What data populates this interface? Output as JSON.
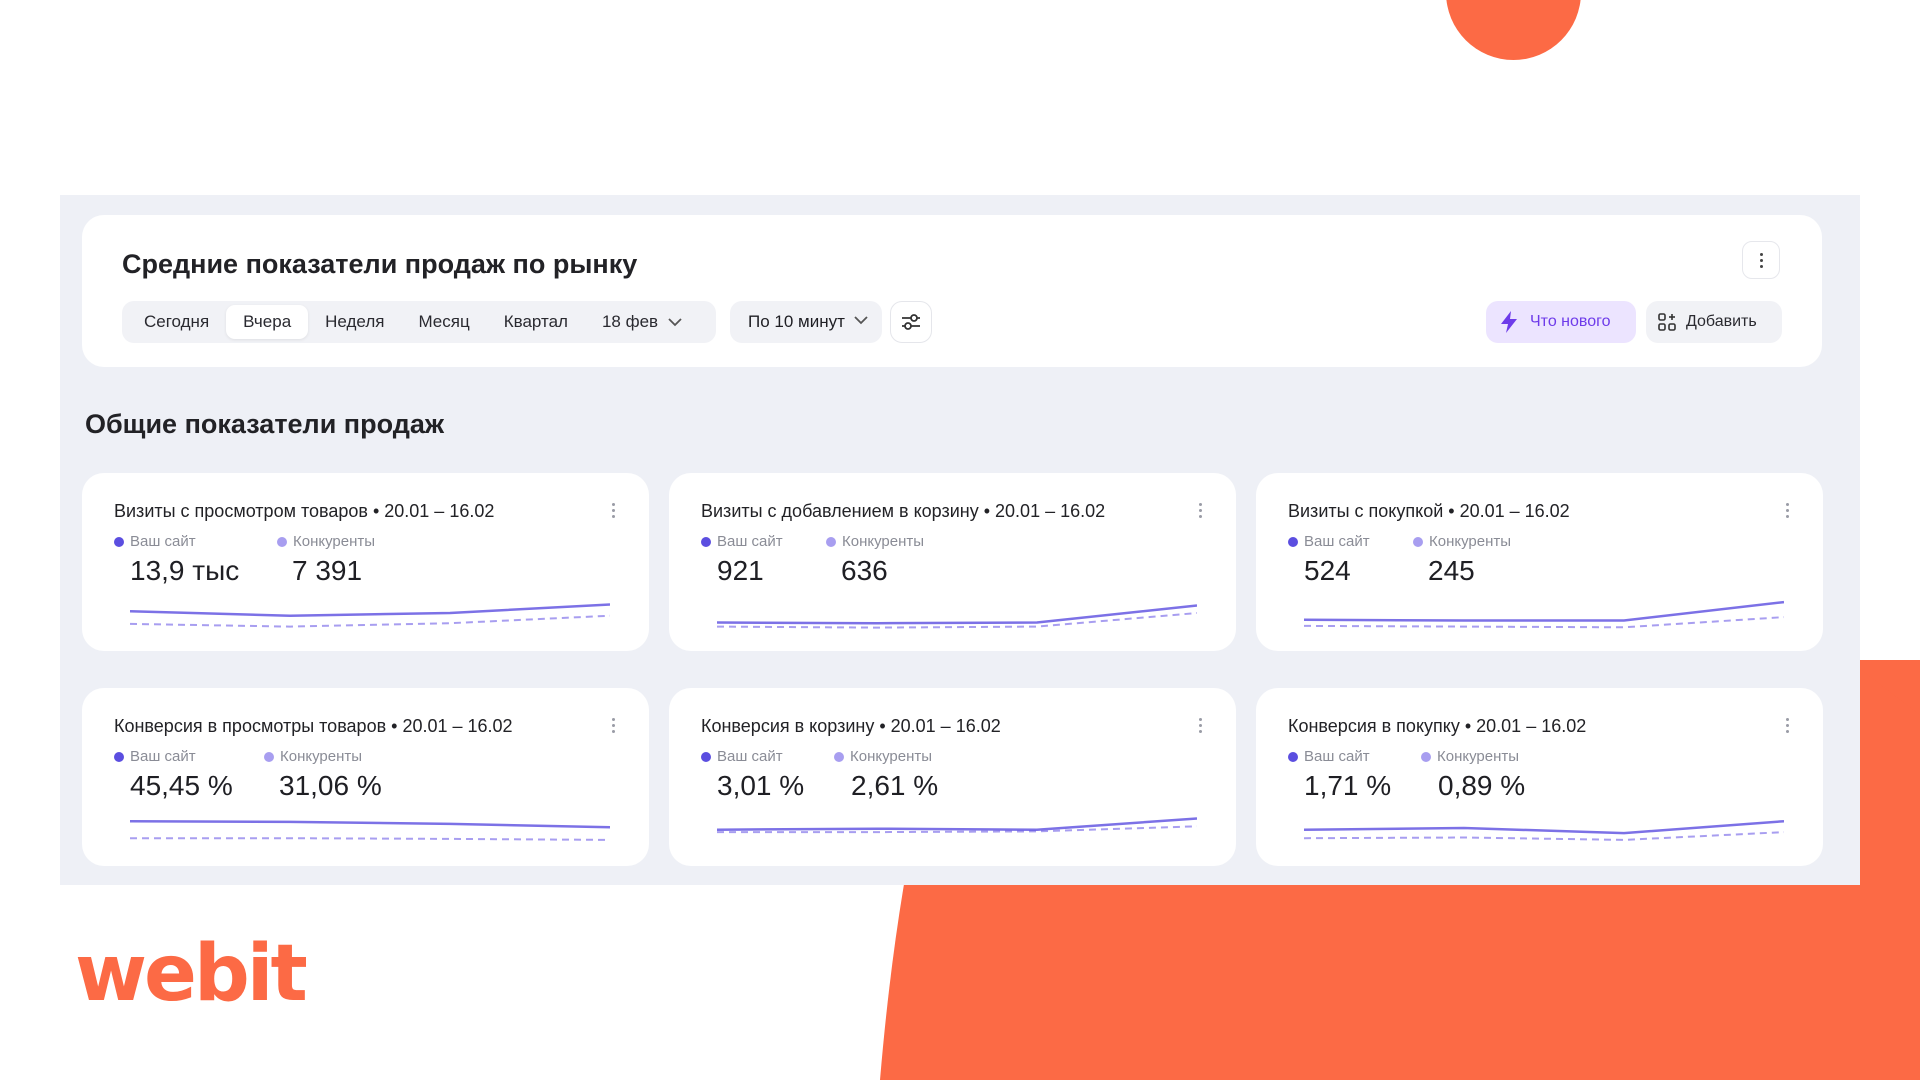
{
  "colors": {
    "accent_orange": "#fc6a45",
    "your_site": "#5b4ee0",
    "competitors": "#a89ef0",
    "whats_new_bg": "#ece4ff",
    "whats_new_text": "#6e3bea"
  },
  "brand": {
    "logo": "webit"
  },
  "header": {
    "title": "Средние показатели продаж по рынку",
    "more_icon": "kebab-vertical-icon"
  },
  "toolbar": {
    "periods": [
      "Сегодня",
      "Вчера",
      "Неделя",
      "Месяц",
      "Квартал"
    ],
    "active_period": "Вчера",
    "date": "18 фев",
    "interval": "По 10 минут",
    "filter_icon": "sliders-icon",
    "whats_new_label": "Что нового",
    "whats_new_icon": "lightning-icon",
    "add_label": "Добавить",
    "add_icon": "widgets-add-icon"
  },
  "section": {
    "title": "Общие показатели продаж"
  },
  "legend": {
    "site": "Ваш сайт",
    "competitors": "Конкуренты"
  },
  "cards": [
    {
      "title": "Визиты с просмотром товаров • 20.01 – 16.02",
      "site_value": "13,9 тыс",
      "comp_value": "7 391",
      "site_series": [
        0.55,
        0.42,
        0.5,
        0.75
      ],
      "comp_series": [
        0.18,
        0.1,
        0.2,
        0.42
      ]
    },
    {
      "title": "Визиты с добавлением в корзину • 20.01 – 16.02",
      "site_value": "921",
      "comp_value": "636",
      "site_series": [
        0.22,
        0.2,
        0.22,
        0.72
      ],
      "comp_series": [
        0.1,
        0.07,
        0.1,
        0.5
      ]
    },
    {
      "title": "Визиты с покупкой • 20.01 – 16.02",
      "site_value": "524",
      "comp_value": "245",
      "site_series": [
        0.3,
        0.28,
        0.28,
        0.82
      ],
      "comp_series": [
        0.12,
        0.1,
        0.08,
        0.38
      ]
    },
    {
      "title": "Конверсия в просмотры товаров • 20.01 – 16.02",
      "site_value": "45,45 %",
      "comp_value": "31,06 %",
      "site_series": [
        0.7,
        0.68,
        0.62,
        0.52
      ],
      "comp_series": [
        0.2,
        0.2,
        0.18,
        0.15
      ]
    },
    {
      "title": "Конверсия в корзину • 20.01 – 16.02",
      "site_value": "3,01 %",
      "comp_value": "2,61 %",
      "site_series": [
        0.45,
        0.48,
        0.45,
        0.78
      ],
      "comp_series": [
        0.38,
        0.38,
        0.4,
        0.55
      ]
    },
    {
      "title": "Конверсия в покупку • 20.01 – 16.02",
      "site_value": "1,71 %",
      "comp_value": "0,89 %",
      "site_series": [
        0.45,
        0.5,
        0.35,
        0.7
      ],
      "comp_series": [
        0.2,
        0.22,
        0.15,
        0.38
      ]
    }
  ]
}
